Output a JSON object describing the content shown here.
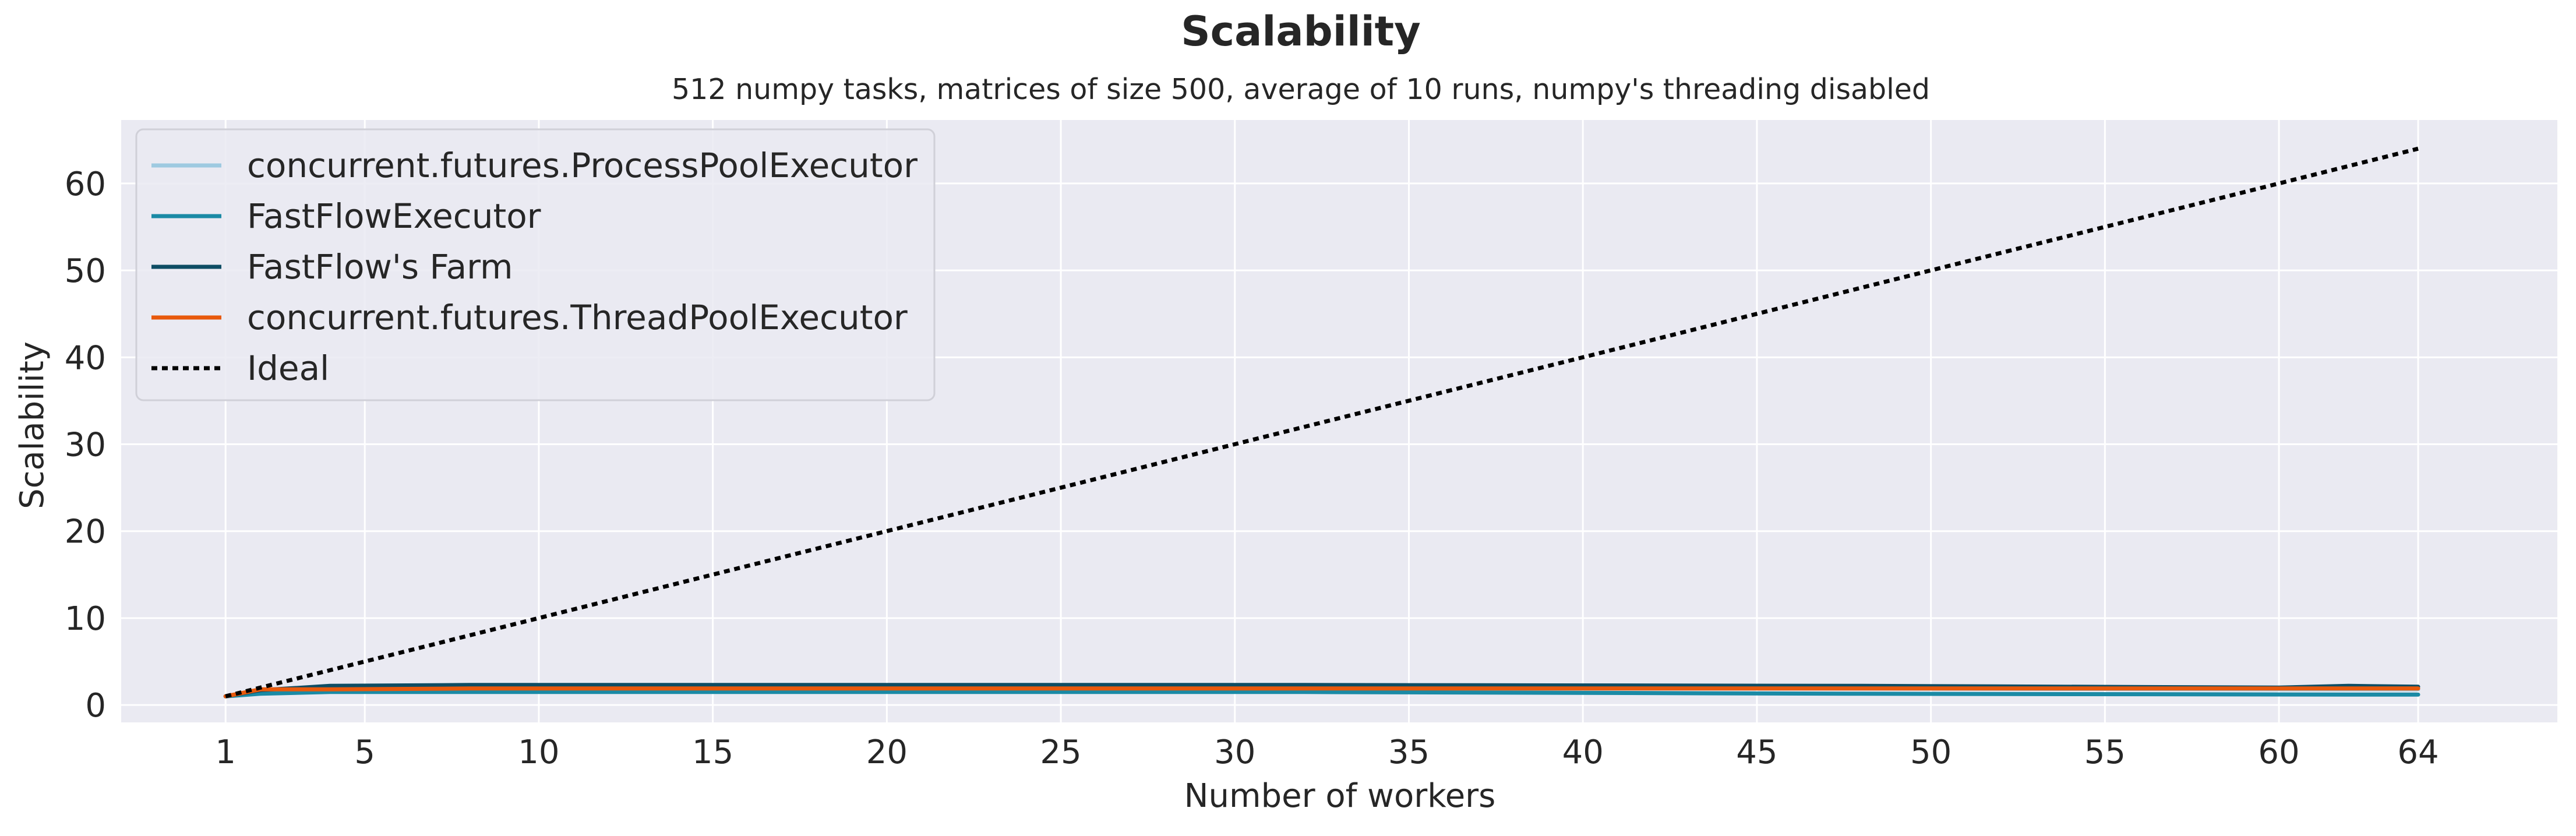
{
  "chart_data": {
    "type": "line",
    "title": "Scalability",
    "subtitle": "512 numpy tasks, matrices of size 500, average of 10 runs, numpy's threading disabled",
    "xlabel": "Number of workers",
    "ylabel": "Scalability",
    "xlim": [
      -2,
      68
    ],
    "ylim": [
      -2,
      67.3
    ],
    "xticks": [
      1,
      5,
      10,
      15,
      20,
      25,
      30,
      35,
      40,
      45,
      50,
      55,
      60,
      64
    ],
    "yticks": [
      0,
      10,
      20,
      30,
      40,
      50,
      60
    ],
    "grid": true,
    "legend_position": "top-left",
    "colors": {
      "background": "#eaeaf2",
      "grid": "#ffffff",
      "text": "#262626"
    },
    "series": [
      {
        "name": "concurrent.futures.ProcessPoolExecutor",
        "color": "#9ecae1",
        "dash": "solid",
        "x": [
          1,
          2,
          4,
          8,
          16,
          32,
          48,
          62,
          64
        ],
        "y": [
          1.0,
          1.6,
          1.9,
          2.0,
          2.0,
          2.0,
          1.9,
          1.8,
          1.8
        ]
      },
      {
        "name": "FastFlowExecutor",
        "color": "#1a8aa5",
        "dash": "solid",
        "x": [
          1,
          2,
          4,
          8,
          16,
          32,
          48,
          62,
          64
        ],
        "y": [
          1.0,
          1.3,
          1.5,
          1.5,
          1.5,
          1.5,
          1.3,
          1.2,
          1.2
        ]
      },
      {
        "name": "FastFlow's Farm",
        "color": "#0e4d64",
        "dash": "solid",
        "x": [
          1,
          2,
          4,
          8,
          16,
          32,
          48,
          60,
          62,
          64
        ],
        "y": [
          1.0,
          1.7,
          2.2,
          2.3,
          2.3,
          2.3,
          2.2,
          2.0,
          2.2,
          2.1
        ]
      },
      {
        "name": "concurrent.futures.ThreadPoolExecutor",
        "color": "#e8590c",
        "dash": "solid",
        "x": [
          1,
          2,
          4,
          8,
          16,
          32,
          48,
          62,
          64
        ],
        "y": [
          1.0,
          1.8,
          1.8,
          1.9,
          1.9,
          1.9,
          1.9,
          1.9,
          1.9
        ]
      },
      {
        "name": "Ideal",
        "color": "#000000",
        "dash": "dotted",
        "x": [
          1,
          64
        ],
        "y": [
          1,
          64
        ]
      }
    ]
  }
}
